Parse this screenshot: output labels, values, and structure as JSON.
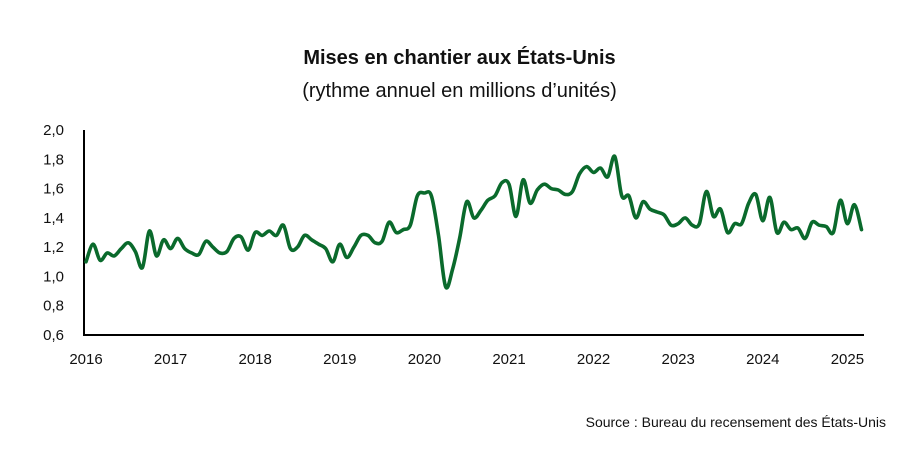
{
  "chart_data": {
    "type": "line",
    "title": "Mises en chantier aux États-Unis",
    "subtitle": "(rythme annuel en millions d’unités)",
    "source": "Source : Bureau du recensement des États-Unis",
    "xlabel": "",
    "ylabel": "",
    "ylim": [
      0.6,
      2.0
    ],
    "yticks": [
      "0,6",
      "0,8",
      "1,0",
      "1,2",
      "1,4",
      "1,6",
      "1,8",
      "2,0"
    ],
    "ytick_values": [
      0.6,
      0.8,
      1.0,
      1.2,
      1.4,
      1.6,
      1.8,
      2.0
    ],
    "xticks": [
      "2016",
      "2017",
      "2018",
      "2019",
      "2020",
      "2021",
      "2022",
      "2023",
      "2024",
      "2025"
    ],
    "x_start": "2016-01",
    "frequency": "monthly",
    "grid": false,
    "line_color": "#0a6a2c",
    "series": [
      {
        "name": "Mises en chantier",
        "values": [
          1.1,
          1.22,
          1.11,
          1.16,
          1.14,
          1.19,
          1.23,
          1.17,
          1.06,
          1.31,
          1.14,
          1.25,
          1.19,
          1.26,
          1.19,
          1.16,
          1.15,
          1.24,
          1.2,
          1.16,
          1.17,
          1.26,
          1.27,
          1.18,
          1.3,
          1.28,
          1.31,
          1.28,
          1.35,
          1.19,
          1.2,
          1.28,
          1.25,
          1.22,
          1.19,
          1.1,
          1.22,
          1.13,
          1.2,
          1.28,
          1.28,
          1.23,
          1.24,
          1.37,
          1.3,
          1.32,
          1.35,
          1.55,
          1.57,
          1.55,
          1.28,
          0.93,
          1.05,
          1.26,
          1.51,
          1.4,
          1.45,
          1.52,
          1.55,
          1.64,
          1.63,
          1.41,
          1.66,
          1.5,
          1.59,
          1.63,
          1.6,
          1.59,
          1.56,
          1.58,
          1.7,
          1.75,
          1.71,
          1.74,
          1.68,
          1.82,
          1.55,
          1.55,
          1.4,
          1.51,
          1.46,
          1.44,
          1.42,
          1.35,
          1.36,
          1.4,
          1.35,
          1.36,
          1.58,
          1.41,
          1.46,
          1.3,
          1.36,
          1.36,
          1.5,
          1.56,
          1.38,
          1.54,
          1.3,
          1.37,
          1.32,
          1.33,
          1.26,
          1.37,
          1.35,
          1.34,
          1.3,
          1.52,
          1.36,
          1.49,
          1.32
        ]
      }
    ]
  }
}
